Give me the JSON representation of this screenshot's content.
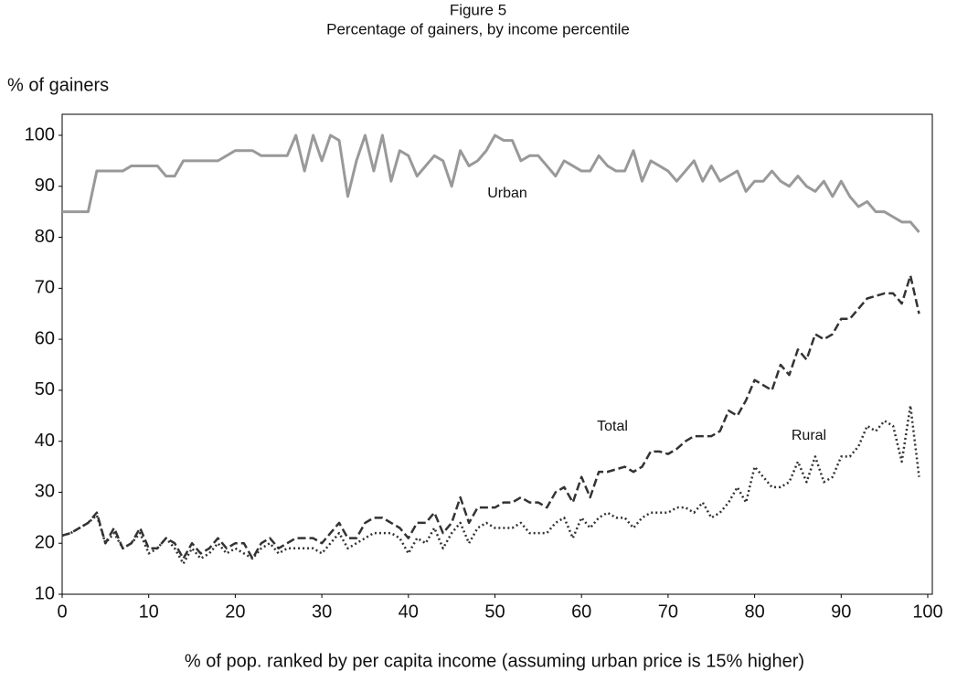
{
  "chart_data": {
    "type": "line",
    "title": "Figure 5",
    "subtitle": "Percentage of gainers, by income percentile",
    "y_label": "% of gainers",
    "x_label": "% of pop. ranked by per capita income (assuming urban price is 15% higher)",
    "x": [
      0,
      1,
      2,
      3,
      4,
      5,
      6,
      7,
      8,
      9,
      10,
      11,
      12,
      13,
      14,
      15,
      16,
      17,
      18,
      19,
      20,
      21,
      22,
      23,
      24,
      25,
      26,
      27,
      28,
      29,
      30,
      31,
      32,
      33,
      34,
      35,
      36,
      37,
      38,
      39,
      40,
      41,
      42,
      43,
      44,
      45,
      46,
      47,
      48,
      49,
      50,
      51,
      52,
      53,
      54,
      55,
      56,
      57,
      58,
      59,
      60,
      61,
      62,
      63,
      64,
      65,
      66,
      67,
      68,
      69,
      70,
      71,
      72,
      73,
      74,
      75,
      76,
      77,
      78,
      79,
      80,
      81,
      82,
      83,
      84,
      85,
      86,
      87,
      88,
      89,
      90,
      91,
      92,
      93,
      94,
      95,
      96,
      97,
      98,
      99
    ],
    "series": [
      {
        "name": "Urban",
        "color": "#999999",
        "style": "solid",
        "values": [
          85,
          85,
          85,
          85,
          93,
          93,
          93,
          93,
          94,
          94,
          94,
          94,
          92,
          92,
          95,
          95,
          95,
          95,
          95,
          96,
          97,
          97,
          97,
          96,
          96,
          96,
          96,
          100,
          93,
          100,
          95,
          100,
          99,
          88,
          95,
          100,
          93,
          100,
          91,
          97,
          96,
          92,
          94,
          96,
          95,
          90,
          97,
          94,
          95,
          97,
          100,
          99,
          99,
          95,
          96,
          96,
          94,
          92,
          95,
          94,
          93,
          93,
          96,
          94,
          93,
          93,
          97,
          91,
          95,
          94,
          93,
          91,
          93,
          95,
          91,
          94,
          91,
          92,
          93,
          89,
          91,
          91,
          93,
          91,
          90,
          92,
          90,
          89,
          91,
          88,
          91,
          88,
          86,
          87,
          85,
          85,
          84,
          83,
          83,
          81
        ]
      },
      {
        "name": "Total",
        "color": "#333333",
        "style": "dashed",
        "values": [
          21.5,
          22,
          23,
          24,
          26,
          20,
          23,
          19,
          20,
          23,
          19,
          19,
          21,
          20,
          17,
          20,
          18,
          19,
          21,
          19,
          20,
          20,
          17,
          20,
          21,
          19,
          20,
          21,
          21,
          21,
          20,
          22,
          24,
          21,
          21,
          24,
          25,
          25,
          24,
          23,
          21,
          24,
          24,
          26,
          22,
          24,
          29,
          24,
          27,
          27,
          27,
          28,
          28,
          29,
          28,
          28,
          27,
          30,
          31,
          28,
          33,
          29,
          34,
          34,
          34.5,
          35,
          34,
          35,
          38,
          38,
          37.5,
          38.5,
          40,
          41,
          41,
          41,
          42,
          46,
          45,
          48,
          52,
          51,
          50,
          55,
          53,
          58,
          56,
          61,
          60,
          61,
          64,
          64,
          66,
          68,
          68.5,
          69,
          69,
          67,
          72.5,
          65
        ]
      },
      {
        "name": "Rural",
        "color": "#333333",
        "style": "dotted",
        "values": [
          21.5,
          22,
          23,
          24,
          25.5,
          20,
          22,
          19,
          20,
          22,
          18,
          19,
          21,
          19,
          16,
          19,
          17,
          18,
          20,
          18,
          19,
          18,
          17,
          19,
          20,
          18,
          19,
          19,
          19,
          19,
          18,
          20,
          22,
          19,
          20,
          21,
          22,
          22,
          22,
          21,
          18,
          21,
          20,
          23,
          19,
          22,
          24,
          20,
          23,
          24,
          23,
          23,
          23,
          24,
          22,
          22,
          22,
          24,
          25,
          21,
          25,
          23,
          25,
          26,
          25,
          25,
          23,
          25,
          26,
          26,
          26,
          27,
          27,
          26,
          28,
          25,
          26,
          28,
          31,
          28,
          35,
          33,
          31,
          31,
          32,
          36,
          32,
          37,
          32,
          33,
          37,
          37,
          39,
          43,
          42,
          44,
          43,
          36,
          47,
          33
        ]
      }
    ],
    "xlim": [
      0,
      100
    ],
    "xticks": [
      0,
      10,
      20,
      30,
      40,
      50,
      60,
      70,
      80,
      90,
      100
    ],
    "ylim": [
      10,
      100
    ],
    "yticks": [
      10,
      20,
      30,
      40,
      50,
      60,
      70,
      80,
      90,
      100
    ],
    "grid": false
  }
}
